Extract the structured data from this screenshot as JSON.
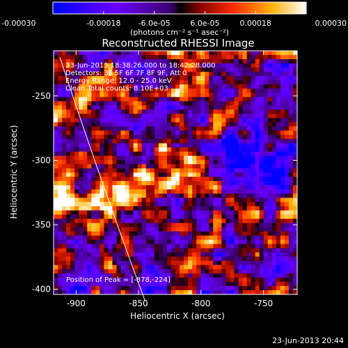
{
  "colorbar": {
    "tick_labels": [
      "-0.00030",
      "-0.00018",
      "-6.0e-05",
      "6.0e-05",
      "0.00018",
      "0.00030"
    ],
    "tick_values": [
      -0.0003,
      -0.00018,
      -6e-05,
      6e-05,
      0.00018,
      0.0003
    ],
    "range": [
      -0.0003,
      0.0003
    ],
    "units": "(photons cm⁻² s⁻¹ asec⁻²)"
  },
  "chart_data": {
    "type": "heatmap",
    "title": "Reconstructed RHESSI Image",
    "xlabel": "Heliocentric X (arcsec)",
    "ylabel": "Heliocentric Y (arcsec)",
    "xlim": [
      -918,
      -723
    ],
    "ylim": [
      -404,
      -215
    ],
    "xticks": [
      -900,
      -850,
      -800,
      -750
    ],
    "yticks": [
      -400,
      -350,
      -300,
      -250
    ],
    "xtick_labels": [
      "-900",
      "-850",
      "-800",
      "-750"
    ],
    "ytick_labels": [
      "-400",
      "-350",
      "-300",
      "-250"
    ],
    "peak": [
      -878,
      -224
    ],
    "annotations": [
      "23-Jun-2013 18:38:26.000 to 18:42:28.000",
      "Detectors: 3F 5F 6F 7F 8F 9F, Att 0",
      "Energy Range: 12.0 - 25.0 keV",
      "Clean     Total counts: 8.10E+03"
    ],
    "peak_label": "Position of Peak = [-878,-224]"
  },
  "timestamp": "23-Jun-2013 20:44"
}
